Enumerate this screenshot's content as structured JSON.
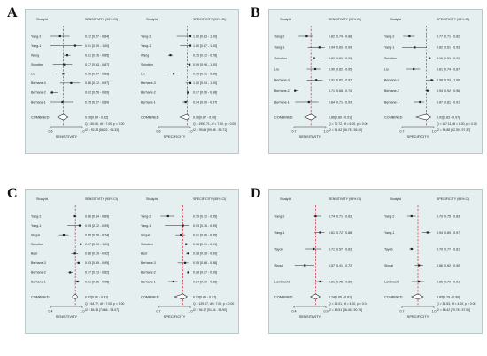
{
  "chart_data": [
    {
      "type": "forest",
      "panel": "A",
      "xlabel_left": "SENSITIVITY",
      "xlabel_right": "SPECIFICITY",
      "col_study": "StudyId",
      "col_sens": "SENSITIVITY (95% CI)",
      "col_spec": "SPECIFICITY (95% CI)",
      "xlim_sens": [
        0.6,
        1.0
      ],
      "xlim_spec": [
        0.6,
        1.0
      ],
      "ticks_sens": [
        "0.6",
        "1.0"
      ],
      "ticks_spec": [
        "0.6",
        "1.0"
      ],
      "pooled_sens": 0.76,
      "pooled_spec": 0.96,
      "studies": [
        {
          "name": "Yang-2",
          "sens": 0.72,
          "sens_ci": [
            0.57,
            0.84
          ],
          "sens_text": "0.72 [0.57 - 0.84]",
          "spec": 1.0,
          "spec_ci": [
            0.83,
            1.0
          ],
          "spec_text": "1.00 [0.83 - 1.00]"
        },
        {
          "name": "Yang-1",
          "sens": 0.91,
          "sens_ci": [
            0.59,
            1.0
          ],
          "sens_text": "0.91 [0.59 - 1.00]",
          "spec": 1.0,
          "spec_ci": [
            0.87,
            1.0
          ],
          "spec_text": "1.00 [0.87 - 1.00]"
        },
        {
          "name": "Wang",
          "sens": 0.81,
          "sens_ci": [
            0.76,
            0.85
          ],
          "sens_text": "0.81 [0.76 - 0.85]",
          "spec": 0.75,
          "spec_ci": [
            0.72,
            0.78
          ],
          "spec_text": "0.75 [0.72 - 0.78]"
        },
        {
          "name": "Schotten",
          "sens": 0.77,
          "sens_ci": [
            0.63,
            0.87
          ],
          "sens_text": "0.77 [0.63 - 0.87]",
          "spec": 0.99,
          "spec_ci": [
            0.96,
            1.0
          ],
          "spec_text": "0.99 [0.96 - 1.00]"
        },
        {
          "name": "Liu",
          "sens": 0.76,
          "sens_ci": [
            0.67,
            0.83
          ],
          "sens_text": "0.76 [0.67 - 0.83]",
          "spec": 0.79,
          "spec_ci": [
            0.71,
            0.85
          ],
          "spec_text": "0.79 [0.71 - 0.85]"
        },
        {
          "name": "Berhane-3",
          "sens": 0.86,
          "sens_ci": [
            0.72,
            0.97
          ],
          "sens_text": "0.86 [0.72 - 0.97]",
          "spec": 1.0,
          "spec_ci": [
            0.94,
            1.0
          ],
          "spec_text": "1.00 [0.94 - 1.00]"
        },
        {
          "name": "Berhane-2",
          "sens": 0.62,
          "sens_ci": [
            0.56,
            0.69
          ],
          "sens_text": "0.62 [0.56 - 0.69]",
          "spec": 0.97,
          "spec_ci": [
            0.96,
            0.98
          ],
          "spec_text": "0.97 [0.96 - 0.98]"
        },
        {
          "name": "Berhane-1",
          "sens": 0.75,
          "sens_ci": [
            0.57,
            0.89
          ],
          "sens_text": "0.75 [0.57 - 0.89]",
          "spec": 0.94,
          "spec_ci": [
            0.9,
            0.97
          ],
          "spec_text": "0.94 [0.90 - 0.97]"
        }
      ],
      "combined_label": "COMBINED",
      "combined_sens_text": "0.76[0.69 - 0.82]",
      "combined_spec_text": "0.96[0.87 - 0.99]",
      "stats_sens": [
        "Q = 60.60, df = 7.00, p = 0.00",
        "I2 = 92.28 [88.22 - 96.33]"
      ],
      "stats_spec": [
        "Q = 1992.71, df = 7.00, p = 0.00",
        "I2 = 99.65 [99.58 - 99.71]"
      ]
    },
    {
      "type": "forest",
      "panel": "B",
      "xlabel_left": "SENSITIVITY",
      "xlabel_right": "SPECIFICITY",
      "col_study": "StudyId",
      "col_sens": "SENSITIVITY (95% CI)",
      "col_spec": "SPECIFICITY (95% CI)",
      "xlim_sens": [
        0.7,
        1.0
      ],
      "xlim_spec": [
        0.7,
        1.0
      ],
      "ticks_sens": [
        "0.7",
        "1.0"
      ],
      "ticks_spec": [
        "0.7",
        "1.0"
      ],
      "pooled_sens": 0.86,
      "pooled_spec": 0.93,
      "studies": [
        {
          "name": "Yang-2",
          "sens": 0.82,
          "sens_ci": [
            0.74,
            0.88
          ],
          "sens_text": "0.82 [0.74 - 0.88]",
          "spec": 0.77,
          "spec_ci": [
            0.71,
            0.82
          ],
          "spec_text": "0.77 [0.71 - 0.82]"
        },
        {
          "name": "Yang-1",
          "sens": 0.94,
          "sens_ci": [
            0.83,
            0.99
          ],
          "sens_text": "0.94 [0.83 - 0.99]",
          "spec": 0.82,
          "spec_ci": [
            0.61,
            0.93
          ],
          "spec_text": "0.82 [0.61 - 0.93]"
        },
        {
          "name": "Schotten",
          "sens": 0.89,
          "sens_ci": [
            0.81,
            0.95
          ],
          "sens_text": "0.89 [0.81 - 0.95]",
          "spec": 0.96,
          "spec_ci": [
            0.91,
            0.99
          ],
          "spec_text": "0.96 [0.91 - 0.99]"
        },
        {
          "name": "Liu",
          "sens": 0.9,
          "sens_ci": [
            0.82,
            0.95
          ],
          "sens_text": "0.90 [0.82 - 0.95]",
          "spec": 0.81,
          "spec_ci": [
            0.74,
            0.87
          ],
          "spec_text": "0.81 [0.74 - 0.87]"
        },
        {
          "name": "Berhane-3",
          "sens": 0.91,
          "sens_ci": [
            0.82,
            0.97
          ],
          "sens_text": "0.91 [0.82 - 0.97]",
          "spec": 0.98,
          "spec_ci": [
            0.93,
            1.0
          ],
          "spec_text": "0.98 [0.93 - 1.00]"
        },
        {
          "name": "Berhane-2",
          "sens": 0.71,
          "sens_ci": [
            0.68,
            0.74
          ],
          "sens_text": "0.71 [0.68 - 0.74]",
          "spec": 0.94,
          "spec_ci": [
            0.92,
            0.96
          ],
          "spec_text": "0.94 [0.92 - 0.96]"
        },
        {
          "name": "Berhane-1",
          "sens": 0.84,
          "sens_ci": [
            0.71,
            0.93
          ],
          "sens_text": "0.84 [0.71 - 0.93]",
          "spec": 0.87,
          "spec_ci": [
            0.81,
            0.91
          ],
          "spec_text": "0.87 [0.81 - 0.91]"
        }
      ],
      "combined_label": "COMBINED",
      "combined_sens_text": "0.86[0.80 - 0.91]",
      "combined_spec_text": "0.93[0.83 - 0.97]",
      "stats_sens": [
        "Q = 70.72, df = 6.00, p = 0.00",
        "I2 = 91.52 [86.75 - 96.30]"
      ],
      "stats_spec": [
        "Q = 117.11, df = 6.00, p = 0.00",
        "I2 = 94.88 [92.39 - 97.37]"
      ]
    },
    {
      "type": "forest",
      "panel": "C",
      "xlabel_left": "SENSITIVITY",
      "xlabel_right": "SPECIFICITY",
      "col_study": "StudyId",
      "col_sens": "SENSITIVITY (95% CI)",
      "col_spec": "SPECIFICITY (95% CI)",
      "xlim_sens": [
        0.4,
        1.0
      ],
      "xlim_spec": [
        0.7,
        1.0
      ],
      "ticks_sens": [
        "0.4",
        "1.0"
      ],
      "ticks_spec": [
        "0.7",
        "1.0"
      ],
      "pooled_sens": 0.87,
      "pooled_spec": 0.93,
      "studies": [
        {
          "name": "Yang-2",
          "sens": 0.86,
          "sens_ci": [
            0.84,
            0.89
          ],
          "sens_text": "0.86 [0.84 - 0.89]",
          "spec": 0.79,
          "spec_ci": [
            0.72,
            0.85
          ],
          "spec_text": "0.79 [0.72 - 0.85]"
        },
        {
          "name": "Yang-1",
          "sens": 0.95,
          "sens_ci": [
            0.72,
            0.99
          ],
          "sens_text": "0.95 [0.72 - 0.99]",
          "spec": 0.93,
          "spec_ci": [
            0.76,
            0.99
          ],
          "spec_text": "0.93 [0.76 - 0.99]"
        },
        {
          "name": "Singal",
          "sens": 0.65,
          "sens_ci": [
            0.56,
            0.74
          ],
          "sens_text": "0.65 [0.56 - 0.74]",
          "spec": 0.91,
          "spec_ci": [
            0.86,
            0.95
          ],
          "spec_text": "0.91 [0.86 - 0.95]"
        },
        {
          "name": "Schotten",
          "sens": 0.97,
          "sens_ci": [
            0.9,
            1.0
          ],
          "sens_text": "0.97 [0.90 - 1.00]",
          "spec": 0.96,
          "spec_ci": [
            0.91,
            0.99
          ],
          "spec_text": "0.96 [0.91 - 0.99]"
        },
        {
          "name": "Best",
          "sens": 0.86,
          "sens_ci": [
            0.79,
            0.92
          ],
          "sens_text": "0.86 [0.79 - 0.92]",
          "spec": 0.98,
          "spec_ci": [
            0.96,
            0.99
          ],
          "spec_text": "0.98 [0.96 - 0.99]"
        },
        {
          "name": "Berhane-3",
          "sens": 0.93,
          "sens_ci": [
            0.89,
            0.95
          ],
          "sens_text": "0.93 [0.89 - 0.95]",
          "spec": 0.95,
          "spec_ci": [
            0.88,
            0.98
          ],
          "spec_text": "0.95 [0.88 - 0.98]"
        },
        {
          "name": "Berhane-2",
          "sens": 0.77,
          "sens_ci": [
            0.73,
            0.82
          ],
          "sens_text": "0.77 [0.73 - 0.82]",
          "spec": 0.98,
          "spec_ci": [
            0.97,
            0.99
          ],
          "spec_text": "0.98 [0.97 - 0.99]"
        },
        {
          "name": "Berhane-1",
          "sens": 0.91,
          "sens_ci": [
            0.86,
            0.95
          ],
          "sens_text": "0.91 [0.86 - 0.95]",
          "spec": 0.84,
          "spec_ci": [
            0.79,
            0.88
          ],
          "spec_text": "0.84 [0.79 - 0.88]"
        }
      ],
      "combined_label": "COMBINED",
      "combined_sens_text": "0.87[0.81 - 0.91]",
      "combined_spec_text": "0.93[0.85 - 0.97]",
      "stats_sens": [
        "Q = 64.77, df = 7.00, p = 0.00",
        "I2 = 84.36 [74.66 - 94.07]"
      ],
      "stats_spec": [
        "Q = 129.07, df = 7.00, p = 0.00",
        "I2 = 94.17 [91.44 - 96.90]"
      ]
    },
    {
      "type": "forest",
      "panel": "D",
      "xlabel_left": "SENSITIVITY",
      "xlabel_right": "SPECIFICITY",
      "col_study": "StudyId",
      "col_sens": "SENSITIVITY (95% CI)",
      "col_spec": "SPECIFICITY (95% CI)",
      "xlim_sens": [
        0.4,
        0.9
      ],
      "xlim_spec": [
        0.7,
        1.0
      ],
      "ticks_sens": [
        "0.4",
        "0.9"
      ],
      "ticks_spec": [
        "0.7",
        "1.0"
      ],
      "pooled_sens": 0.74,
      "pooled_spec": 0.85,
      "studies": [
        {
          "name": "Yang-2",
          "sens": 0.74,
          "sens_ci": [
            0.71,
            0.83
          ],
          "sens_text": "0.74 [0.71 - 0.83]",
          "spec": 0.79,
          "spec_ci": [
            0.75,
            0.83
          ],
          "spec_text": "0.79 [0.75 - 0.83]"
        },
        {
          "name": "Yang-1",
          "sens": 0.81,
          "sens_ci": [
            0.72,
            0.88
          ],
          "sens_text": "0.81 [0.72 - 0.88]",
          "spec": 0.94,
          "spec_ci": [
            0.89,
            0.97
          ],
          "spec_text": "0.94 [0.89 - 0.97]"
        },
        {
          "name": "Tayob",
          "sens": 0.71,
          "sens_ci": [
            0.57,
            0.83
          ],
          "sens_text": "0.71 [0.57 - 0.83]",
          "spec": 0.79,
          "spec_ci": [
            0.77,
            0.81
          ],
          "spec_text": "0.79 [0.77 - 0.81]"
        },
        {
          "name": "Singal",
          "sens": 0.57,
          "sens_ci": [
            0.41,
            0.72
          ],
          "sens_text": "0.57 [0.41 - 0.72]",
          "spec": 0.86,
          "spec_ci": [
            0.82,
            0.9
          ],
          "spec_text": "0.86 [0.82 - 0.90]"
        },
        {
          "name": "Lambrecht",
          "sens": 0.81,
          "sens_ci": [
            0.75,
            0.86
          ],
          "sens_text": "0.81 [0.75 - 0.86]",
          "spec": 0.86,
          "spec_ci": [
            0.79,
            0.91
          ],
          "spec_text": "0.86 [0.79 - 0.91]"
        }
      ],
      "combined_label": "COMBINED",
      "combined_sens_text": "0.74[0.66 - 0.81]",
      "combined_spec_text": "0.85[0.79 - 0.90]",
      "stats_sens": [
        "Q = 15.01, df = 4.00, p = 0.01",
        "I2 = 69.51 [46.45 - 90.19]"
      ],
      "stats_spec": [
        "Q = 34.53, df = 4.00, p = 0.00",
        "I2 = 88.42 [79.78 - 97.06]"
      ]
    }
  ],
  "colors": {
    "panel_bg": "#e6efef",
    "pooled_line": "#e03c52",
    "marker": "#222222"
  }
}
